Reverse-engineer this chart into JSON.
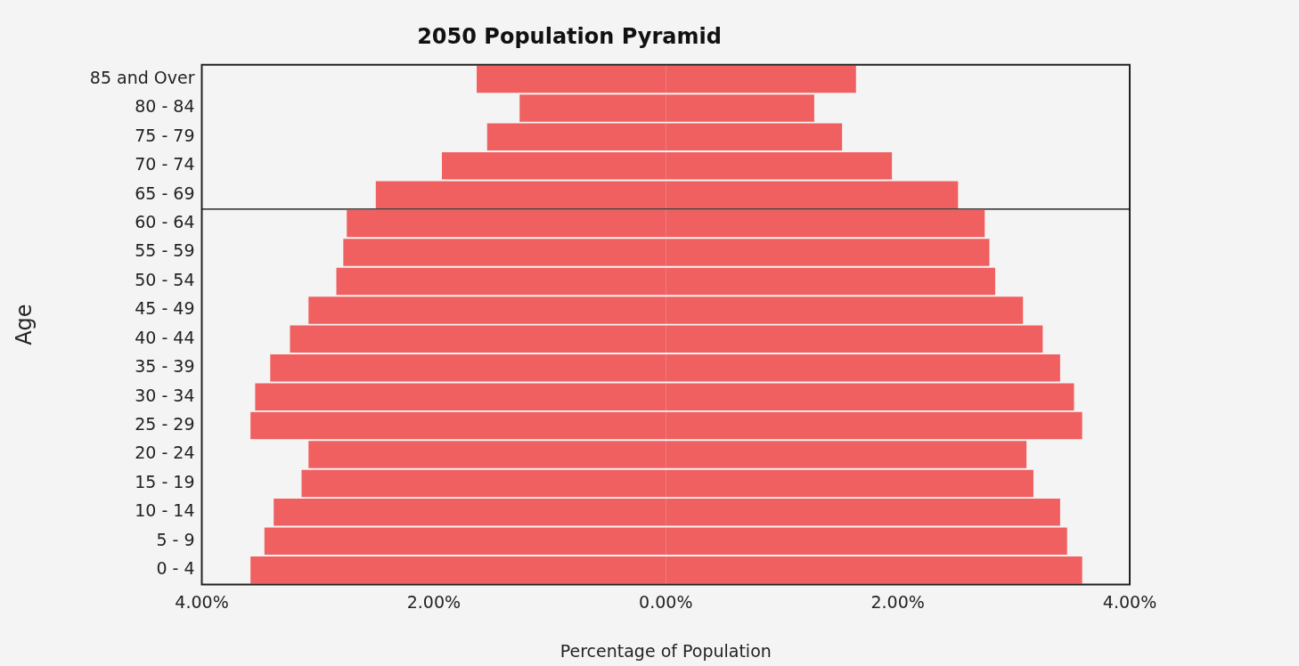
{
  "chart_data": {
    "type": "bar",
    "orientation": "horizontal",
    "stacked": true,
    "title": "2050 Population Pyramid",
    "xlabel": "Percentage of Population",
    "ylabel": "Age",
    "categories": [
      "85 and Over",
      "80 - 84",
      "75 - 79",
      "70 - 74",
      "65 - 69",
      "60 - 64",
      "55 - 59",
      "50 - 54",
      "45 - 49",
      "40 - 44",
      "35 - 39",
      "30 - 34",
      "25 - 29",
      "20 - 24",
      "15 - 19",
      "10 - 14",
      "5 - 9",
      "0 - 4"
    ],
    "series": [
      {
        "color": "#f06060",
        "values": [
          -1.63,
          -1.26,
          -1.54,
          -1.93,
          -2.5,
          -2.75,
          -2.78,
          -2.84,
          -3.08,
          -3.24,
          -3.41,
          -3.54,
          -3.58,
          -3.08,
          -3.14,
          -3.38,
          -3.46,
          -3.58
        ]
      },
      {
        "color": "#f06060",
        "values": [
          1.64,
          1.28,
          1.52,
          1.95,
          2.52,
          2.75,
          2.79,
          2.84,
          3.08,
          3.25,
          3.4,
          3.52,
          3.59,
          3.11,
          3.17,
          3.4,
          3.46,
          3.59
        ]
      }
    ],
    "xlim": [
      -4,
      4
    ],
    "xticks": [
      {
        "value": -4,
        "label": "4.00%"
      },
      {
        "value": -2,
        "label": "2.00%"
      },
      {
        "value": 0,
        "label": "0.00%"
      },
      {
        "value": 2,
        "label": "2.00%"
      },
      {
        "value": 4,
        "label": "4.00%"
      }
    ],
    "ref_lines": [
      {
        "axis": "y",
        "value": "65 - 69",
        "color": "#000000"
      }
    ],
    "grid": false,
    "legend": false
  }
}
